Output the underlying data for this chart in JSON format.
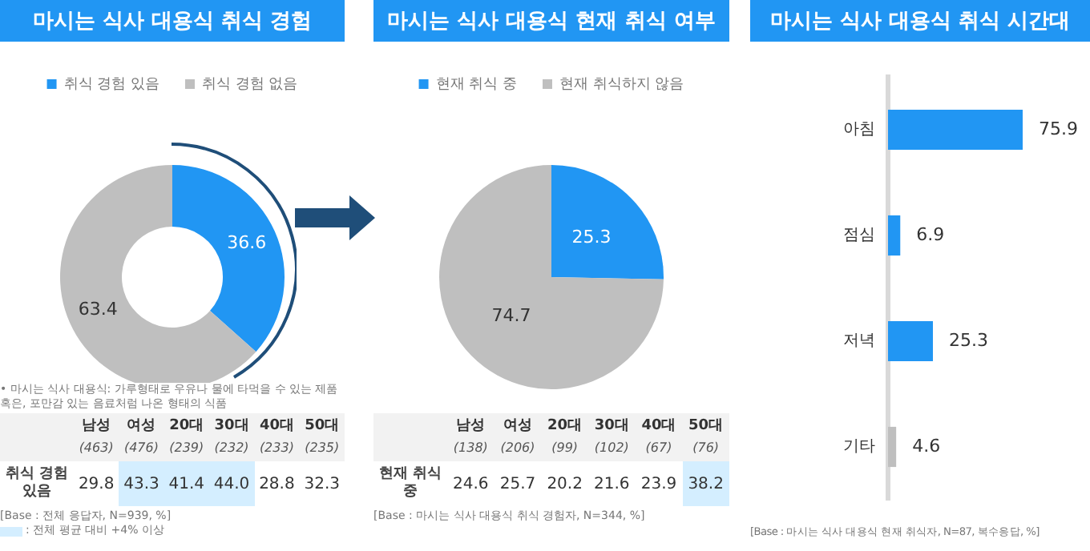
{
  "chart_data": [
    {
      "type": "donut",
      "title": "마시는 식사 대용식 취식 경험",
      "categories": [
        "취식 경험 있음",
        "취식 경험 없음"
      ],
      "values": [
        36.6,
        63.4
      ],
      "colors": [
        "#2196f3",
        "#bfbfbf"
      ],
      "data_labels": true,
      "legend": "top",
      "annotations": [
        "• 마시는 식사 대용식: 가루형태로 우유나 물에 타먹을 수 있는 제품 혹은, 포만감 있는 음료처럼 나온 형태의 식품"
      ]
    },
    {
      "type": "heatmap",
      "categories": [
        "남성 (463)",
        "여성 (476)",
        "20대 (239)",
        "30대 (232)",
        "40대 (233)",
        "50대 (235)"
      ],
      "y_categories": [
        "취식 경험 있음"
      ],
      "cells": [
        [
          29.8,
          43.3,
          41.4,
          44.0,
          28.8,
          32.3
        ]
      ],
      "cell_labels": [
        [
          "29.8",
          "43.3",
          "41.4",
          "44.0",
          "28.8",
          "32.3"
        ]
      ],
      "data_labels": true,
      "colors": [
        [
          "#ffffff",
          "#d4eeff",
          "#d4eeff",
          "#d4eeff",
          "#ffffff",
          "#ffffff"
        ]
      ],
      "annotations": [
        "[Base : 전체 응답자, N=939, %]",
        ": 전체 평균 대비 +4% 이상"
      ]
    },
    {
      "type": "pie",
      "title": "마시는 식사 대용식 현재 취식 여부",
      "categories": [
        "현재 취식 중",
        "현재 취식하지 않음"
      ],
      "values": [
        25.3,
        74.7
      ],
      "colors": [
        "#2196f3",
        "#bfbfbf"
      ],
      "data_labels": true,
      "legend": "top"
    },
    {
      "type": "heatmap",
      "categories": [
        "남성 (138)",
        "여성 (206)",
        "20대 (99)",
        "30대 (102)",
        "40대 (67)",
        "50대 (76)"
      ],
      "y_categories": [
        "현재 취식 중"
      ],
      "cells": [
        [
          24.6,
          25.7,
          20.2,
          21.6,
          23.9,
          38.2
        ]
      ],
      "data_labels": true,
      "colors": [
        [
          "#ffffff",
          "#ffffff",
          "#ffffff",
          "#ffffff",
          "#ffffff",
          "#d4eeff"
        ]
      ],
      "annotations": [
        "[Base : 마시는 식사 대용식 취식 경험자, N=344, %]"
      ]
    },
    {
      "type": "bar",
      "orientation": "horizontal",
      "title": "마시는 식사 대용식 취식 시간대",
      "categories": [
        "아침",
        "점심",
        "저녁",
        "기타"
      ],
      "values": [
        75.9,
        6.9,
        25.3,
        4.6
      ],
      "colors": [
        "#2196f3",
        "#2196f3",
        "#2196f3",
        "#bfbfbf"
      ],
      "data_labels": true,
      "annotations": [
        "[Base : 마시는 식사 대용식 현재 취식자, N=87, 복수응답, %]"
      ]
    }
  ]
}
